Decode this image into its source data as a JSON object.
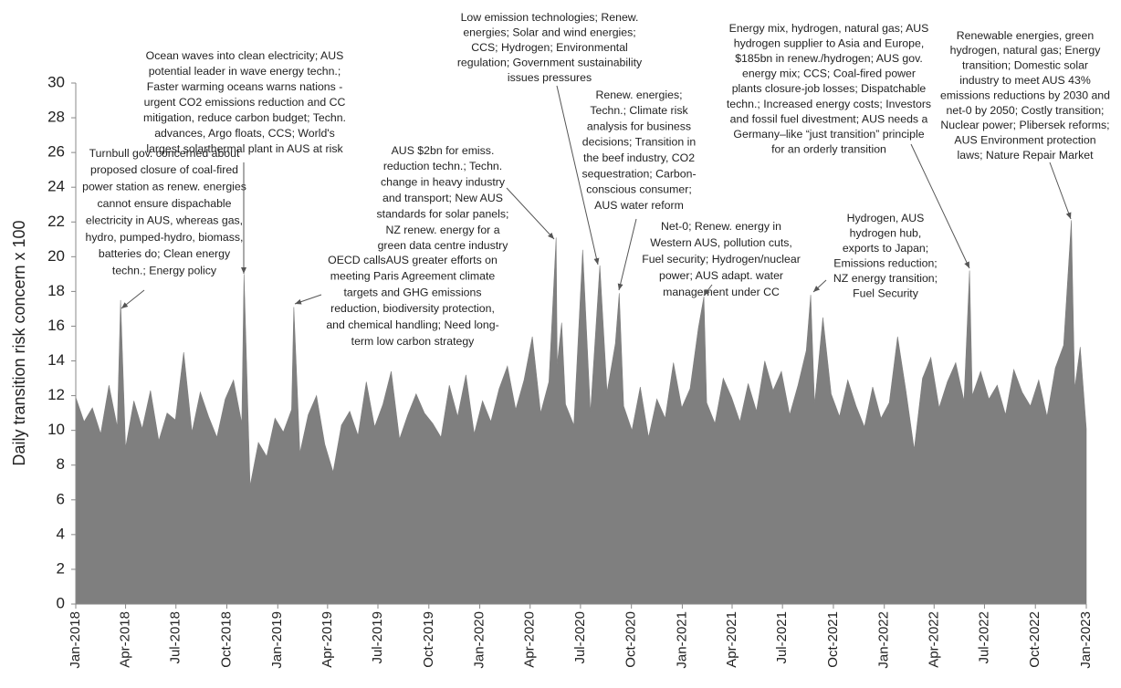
{
  "chart_data": {
    "type": "area",
    "ylabel": "Daily transition risk concern x 100",
    "color": "#7f7f7f",
    "xlim": [
      0,
      1826
    ],
    "xticks": [
      {
        "value": 0,
        "label": "Jan-2018"
      },
      {
        "value": 90,
        "label": "Apr-2018"
      },
      {
        "value": 181,
        "label": "Jul-2018"
      },
      {
        "value": 273,
        "label": "Oct-2018"
      },
      {
        "value": 365,
        "label": "Jan-2019"
      },
      {
        "value": 455,
        "label": "Apr-2019"
      },
      {
        "value": 546,
        "label": "Jul-2019"
      },
      {
        "value": 638,
        "label": "Oct-2019"
      },
      {
        "value": 730,
        "label": "Jan-2020"
      },
      {
        "value": 821,
        "label": "Apr-2020"
      },
      {
        "value": 912,
        "label": "Jul-2020"
      },
      {
        "value": 1004,
        "label": "Oct-2020"
      },
      {
        "value": 1096,
        "label": "Jan-2021"
      },
      {
        "value": 1186,
        "label": "Apr-2021"
      },
      {
        "value": 1277,
        "label": "Jul-2021"
      },
      {
        "value": 1369,
        "label": "Oct-2021"
      },
      {
        "value": 1461,
        "label": "Jan-2022"
      },
      {
        "value": 1551,
        "label": "Apr-2022"
      },
      {
        "value": 1642,
        "label": "Jul-2022"
      },
      {
        "value": 1734,
        "label": "Oct-2022"
      },
      {
        "value": 1826,
        "label": "Jan-2023"
      }
    ],
    "ylim": [
      0,
      30
    ],
    "yticks": [
      0,
      2,
      4,
      6,
      8,
      10,
      12,
      14,
      16,
      18,
      20,
      22,
      24,
      26,
      28,
      30
    ],
    "x": [
      0,
      15,
      30,
      45,
      60,
      75,
      81,
      90,
      105,
      120,
      135,
      150,
      165,
      180,
      195,
      210,
      225,
      240,
      255,
      270,
      285,
      300,
      304,
      315,
      330,
      345,
      360,
      375,
      390,
      394,
      405,
      420,
      435,
      450,
      465,
      480,
      495,
      510,
      525,
      540,
      555,
      570,
      585,
      600,
      615,
      630,
      645,
      660,
      675,
      690,
      705,
      720,
      735,
      750,
      765,
      780,
      795,
      810,
      825,
      840,
      855,
      868,
      870,
      878,
      885,
      900,
      916,
      930,
      947,
      960,
      975,
      982,
      990,
      1005,
      1020,
      1035,
      1050,
      1065,
      1080,
      1095,
      1110,
      1125,
      1135,
      1140,
      1155,
      1170,
      1185,
      1200,
      1215,
      1230,
      1245,
      1260,
      1275,
      1290,
      1305,
      1320,
      1328,
      1335,
      1350,
      1365,
      1380,
      1395,
      1410,
      1425,
      1440,
      1455,
      1470,
      1485,
      1500,
      1515,
      1530,
      1545,
      1560,
      1575,
      1590,
      1605,
      1615,
      1620,
      1635,
      1650,
      1665,
      1680,
      1695,
      1710,
      1725,
      1740,
      1755,
      1770,
      1785,
      1799,
      1805,
      1815,
      1826
    ],
    "values": [
      11.9,
      10.5,
      11.3,
      9.8,
      12.6,
      10.2,
      17.5,
      9.0,
      11.7,
      10.1,
      12.3,
      9.4,
      11.0,
      10.6,
      14.5,
      9.9,
      12.2,
      10.8,
      9.6,
      11.8,
      12.9,
      10.4,
      19.0,
      6.8,
      9.3,
      8.5,
      10.7,
      9.9,
      11.2,
      17.1,
      8.7,
      10.9,
      12.0,
      9.2,
      7.6,
      10.3,
      11.1,
      9.7,
      12.8,
      10.2,
      11.5,
      13.4,
      9.5,
      10.9,
      12.1,
      11.0,
      10.4,
      9.6,
      12.6,
      10.8,
      13.2,
      9.8,
      11.7,
      10.5,
      12.4,
      13.7,
      11.2,
      12.9,
      15.4,
      11.0,
      12.8,
      21.1,
      13.8,
      16.2,
      11.5,
      10.3,
      20.4,
      11.0,
      19.5,
      12.2,
      15.0,
      17.9,
      11.4,
      10.0,
      12.5,
      9.6,
      11.8,
      10.7,
      13.9,
      11.3,
      12.4,
      15.9,
      17.7,
      11.6,
      10.4,
      13.0,
      11.9,
      10.5,
      12.7,
      11.1,
      14.0,
      12.3,
      13.4,
      10.9,
      12.6,
      14.6,
      17.8,
      11.5,
      16.5,
      12.1,
      10.8,
      12.9,
      11.4,
      10.2,
      12.5,
      10.7,
      11.6,
      15.4,
      12.3,
      8.9,
      13.0,
      14.2,
      11.3,
      12.8,
      13.9,
      11.7,
      19.2,
      12.0,
      13.4,
      11.8,
      12.6,
      10.9,
      13.5,
      12.2,
      11.4,
      12.9,
      10.8,
      13.6,
      14.9,
      22.1,
      12.4,
      14.8,
      10.1
    ],
    "annotations": [
      {
        "lines": [
          "Turnbull gov. concerned about",
          "proposed closure of coal-fired",
          "power station as renew. energies",
          "cannot ensure dispachable",
          "electricity in AUS, whereas gas,",
          "hydro, pumped-hydro, biomass,",
          "batteries do; Clean energy",
          "techn.; Energy policy"
        ]
      },
      {
        "lines": [
          "Ocean waves into clean electricity; AUS",
          "potential leader in wave energy techn.;",
          "Faster warming oceans warns nations -",
          "urgent CO2 emissions reduction and CC",
          "mitigation, reduce carbon budget; Techn.",
          "advances, Argo floats, CCS; World's",
          "largest solarthermal plant in AUS at risk"
        ]
      },
      {
        "lines": [
          "OECD callsAUS greater efforts on",
          "meeting Paris Agreement climate",
          "targets and GHG emissions",
          "reduction, biodiversity protection,",
          "and chemical handling; Need long-",
          "term low carbon strategy"
        ]
      },
      {
        "lines": [
          "AUS $2bn for emiss.",
          "reduction techn.; Techn.",
          "change in heavy industry",
          "and transport; New AUS",
          "standards for solar panels;",
          "NZ renew. energy for a",
          "green data centre industry"
        ]
      },
      {
        "lines": [
          "Low emission technologies; Renew.",
          "energies; Solar and wind energies;",
          "CCS; Hydrogen; Environmental",
          "regulation; Government sustainability",
          "issues pressures"
        ]
      },
      {
        "lines": [
          "Renew. energies;",
          "Techn.; Climate risk",
          "analysis for business",
          "decisions; Transition in",
          "the beef industry, CO2",
          "sequestration; Carbon-",
          "conscious consumer;",
          "AUS water reform"
        ]
      },
      {
        "lines": [
          "Net-0; Renew. energy in",
          "Western AUS, pollution cuts,",
          "Fuel security; Hydrogen/nuclear",
          "power; AUS adapt. water",
          "management under CC"
        ]
      },
      {
        "lines": [
          "Energy mix, hydrogen, natural gas; AUS",
          "hydrogen supplier to Asia and Europe,",
          "$185bn in renew./hydrogen; AUS gov.",
          "energy mix;  CCS; Coal-fired power",
          "plants closure-job losses; Dispatchable",
          "techn.; Increased energy costs; Investors",
          "and fossil fuel divestment; AUS needs a",
          "Germany–like “just transition” principle",
          "for an orderly transition"
        ]
      },
      {
        "lines": [
          "Hydrogen, AUS",
          "hydrogen hub,",
          "exports to Japan;",
          "Emissions reduction;",
          "NZ  energy transition;",
          "Fuel Security"
        ]
      },
      {
        "lines": [
          "Renewable energies, green",
          "hydrogen, natural gas; Energy",
          "transition; Domestic solar",
          "industry to meet AUS 43%",
          "emissions reductions by 2030 and",
          "net-0 by 2050; Costly transition;",
          "Nuclear power; Plibersek reforms;",
          "AUS Environment protection",
          "laws; Nature Repair Market"
        ]
      }
    ]
  }
}
